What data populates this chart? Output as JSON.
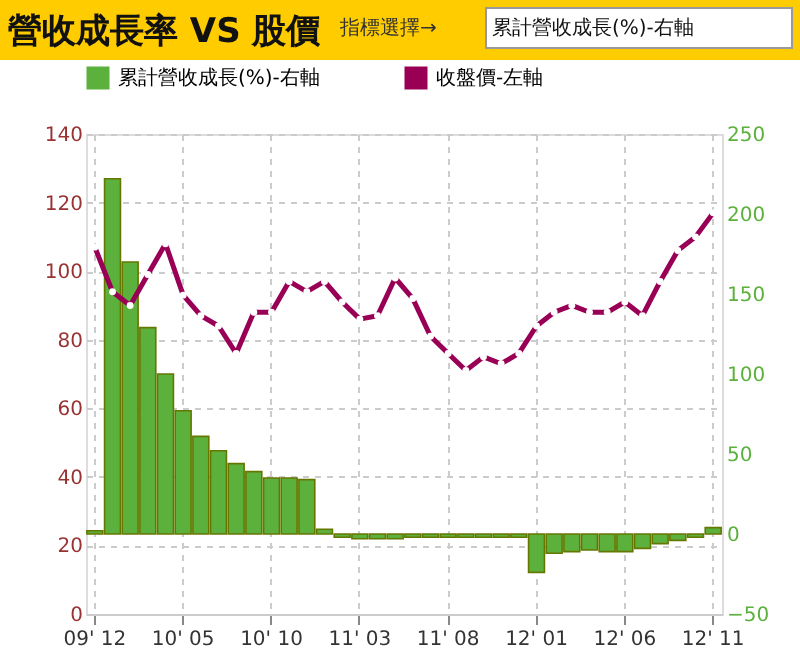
{
  "chart_data": {
    "type": "bar",
    "title": "營收成長率 VS 股價",
    "annotations": [
      "指標選擇→",
      "累計營收成長(%)-右軸"
    ],
    "categories": [
      "09' 12",
      null,
      null,
      null,
      null,
      "10' 05",
      null,
      null,
      null,
      null,
      "10' 10",
      null,
      null,
      null,
      null,
      "11' 03",
      null,
      null,
      null,
      null,
      "11' 08",
      null,
      null,
      null,
      null,
      "12' 01",
      null,
      null,
      null,
      null,
      "12' 06",
      null,
      null,
      null,
      null,
      "12' 11"
    ],
    "series": [
      {
        "name": "累計營收成長(%)-右軸",
        "axis": "y2",
        "color": "#5cb03c",
        "values": [
          2,
          222,
          170,
          129,
          100,
          77,
          61,
          52,
          44,
          39,
          35,
          35,
          34,
          3,
          -2,
          -3,
          -3,
          -3,
          -2,
          -2,
          -2,
          -2,
          -2,
          -2,
          -2,
          -24,
          -12,
          -11,
          -10,
          -11,
          -11,
          -9,
          -6,
          -4,
          -2,
          4
        ]
      },
      {
        "name": "收盤價-左軸",
        "type": "line",
        "color": "#990055",
        "values": [
          107,
          94,
          90,
          99,
          108,
          93,
          87,
          84,
          76,
          88,
          88,
          97,
          94,
          97,
          91,
          86,
          87,
          98,
          92,
          81,
          76,
          71,
          75,
          73,
          76,
          84,
          88,
          90,
          88,
          88,
          91,
          87,
          97,
          106,
          110,
          117
        ]
      }
    ],
    "ylim": [
      0,
      140
    ],
    "yticks": [
      0,
      20,
      40,
      60,
      80,
      100,
      120,
      140
    ],
    "y2lim": [
      -50,
      250
    ],
    "y2ticks": [
      -50,
      0,
      50,
      100,
      150,
      200,
      250
    ],
    "grid": true,
    "legend": "top",
    "marker": "circle",
    "line_style": "solid"
  }
}
